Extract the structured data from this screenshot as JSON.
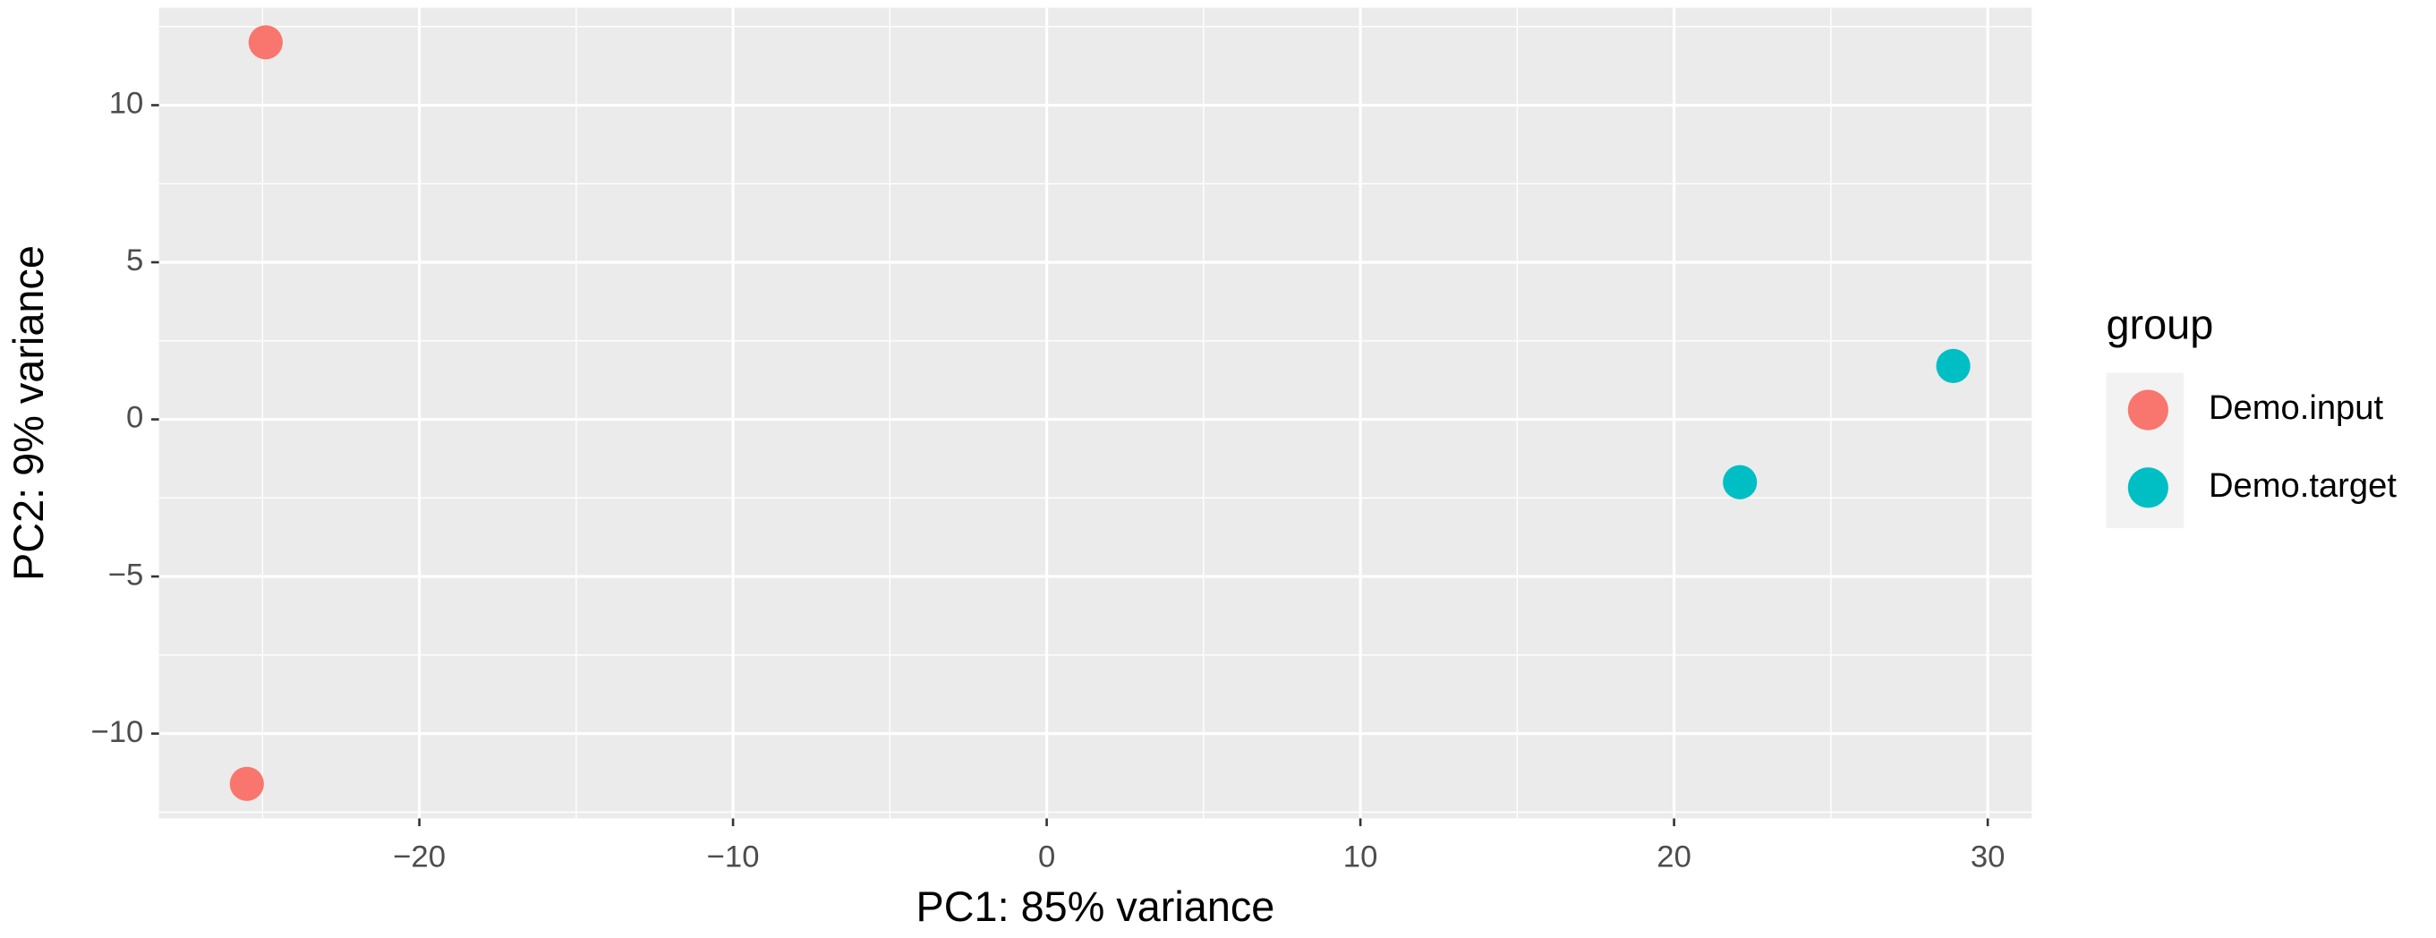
{
  "chart_data": {
    "type": "scatter",
    "xlabel": "PC1: 85% variance",
    "ylabel": "PC2: 9% variance",
    "legend_title": "group",
    "legend_position": "right",
    "xlim": [
      -28.3,
      31.4
    ],
    "ylim": [
      -12.7,
      13.1
    ],
    "xticks": [
      {
        "value": -20,
        "label": "−20"
      },
      {
        "value": -10,
        "label": "−10"
      },
      0,
      10,
      20,
      30
    ],
    "yticks": [
      {
        "value": -10,
        "label": "−10"
      },
      {
        "value": -5,
        "label": "−5"
      },
      0,
      5,
      10
    ],
    "grid": true,
    "background": "#ebebeb",
    "series": [
      {
        "name": "Demo.input",
        "color": "#f8766d",
        "x": [
          -24.9,
          -25.5
        ],
        "values": [
          12.0,
          -11.6
        ]
      },
      {
        "name": "Demo.target",
        "color": "#00bfc4",
        "x": [
          22.1,
          28.9
        ],
        "values": [
          -2.0,
          1.7
        ]
      }
    ]
  }
}
